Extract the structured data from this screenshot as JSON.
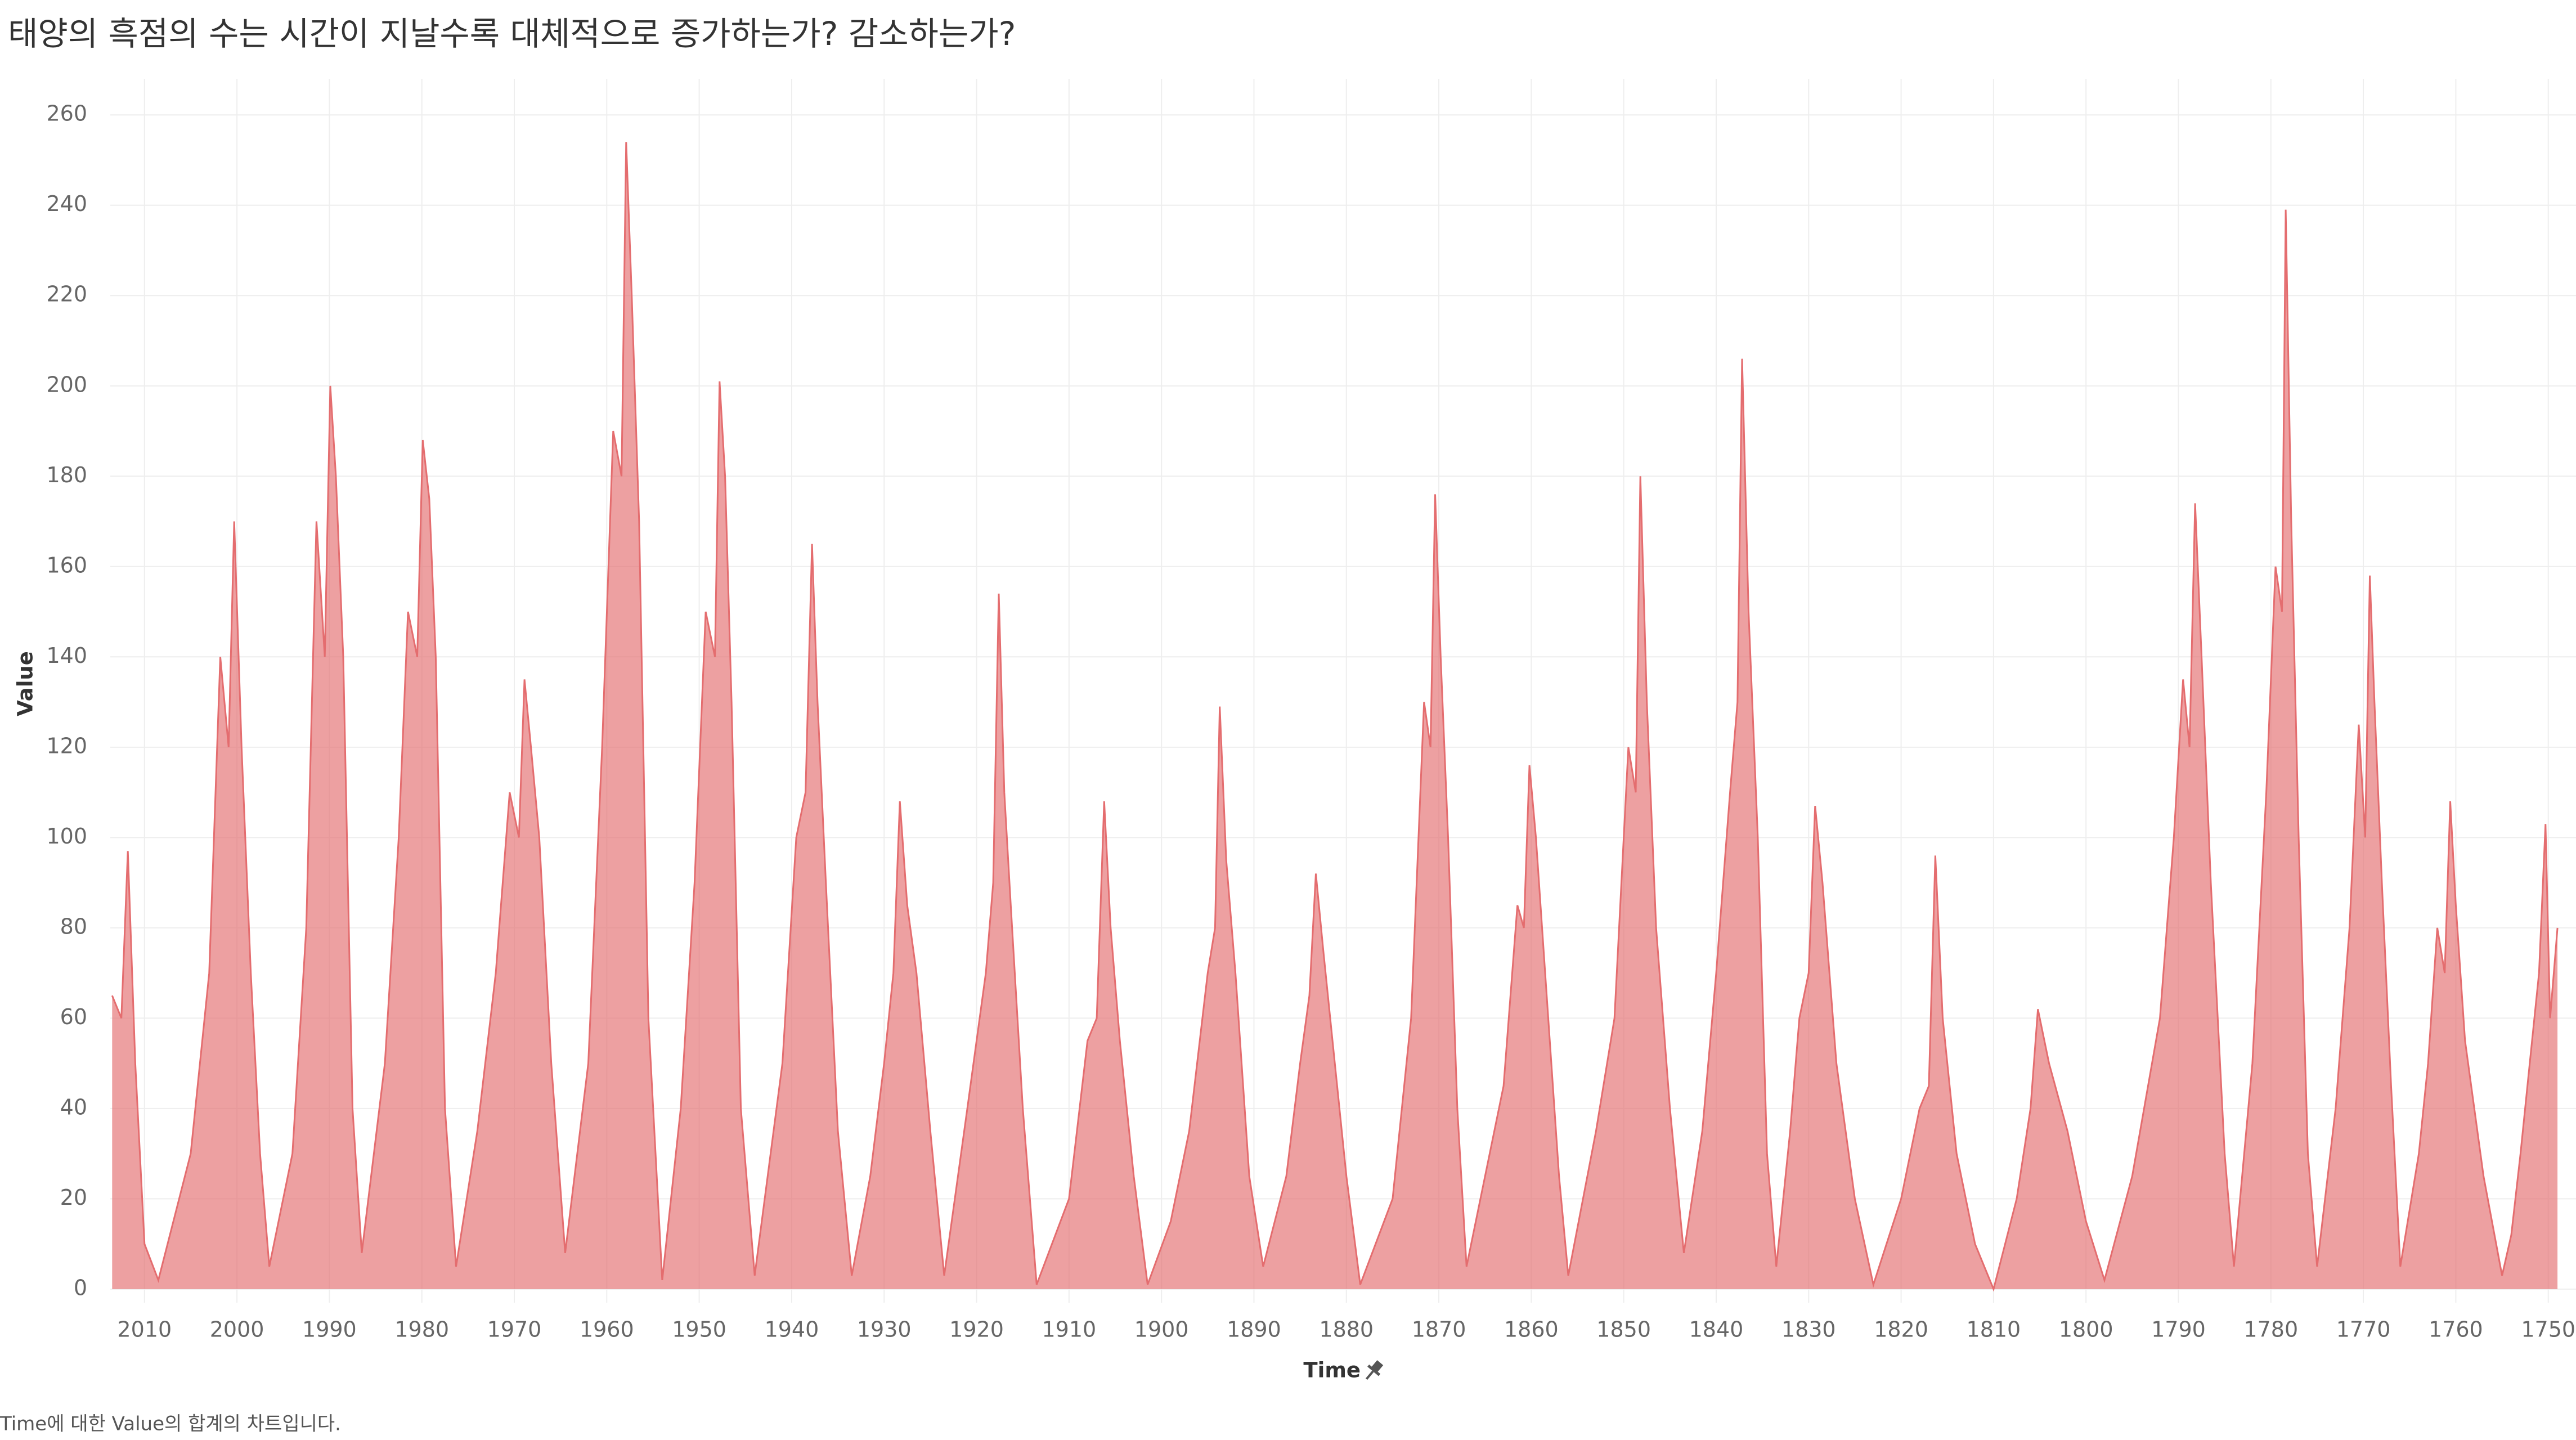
{
  "chart_data": {
    "type": "area",
    "title": "태양의 흑점의 수는 시간이 지날수록 대체적으로 증가하는가? 감소하는가?",
    "x_label": "Time",
    "y_label": "Value",
    "description": "Time에 대한 Value의 합계의 차트입니다.",
    "color": "#e46d6f",
    "grid": true,
    "xlim": [
      2013.7,
      1747
    ],
    "ylim": [
      -3,
      268
    ],
    "xticks": [
      2010,
      2000,
      1990,
      1980,
      1970,
      1960,
      1950,
      1940,
      1930,
      1920,
      1910,
      1900,
      1890,
      1880,
      1870,
      1860,
      1850,
      1840,
      1830,
      1820,
      1810,
      1800,
      1790,
      1780,
      1770,
      1760,
      1750
    ],
    "yticks": [
      0,
      20,
      40,
      60,
      80,
      100,
      120,
      140,
      160,
      180,
      200,
      220,
      240,
      260
    ],
    "x": [
      1749,
      1749.8,
      1750.3,
      1751,
      1752,
      1753,
      1754,
      1755,
      1757,
      1759,
      1760,
      1760.6,
      1761.2,
      1762,
      1763,
      1764,
      1766,
      1767,
      1768,
      1768.8,
      1769.3,
      1769.8,
      1770.5,
      1771.5,
      1773,
      1775,
      1776,
      1777,
      1777.8,
      1778.4,
      1778.8,
      1779.5,
      1780.5,
      1782,
      1784,
      1785,
      1786.5,
      1787.5,
      1788.2,
      1788.8,
      1789.5,
      1790.5,
      1792,
      1795,
      1798,
      1800,
      1802,
      1804,
      1805.2,
      1806,
      1807.5,
      1810,
      1812,
      1814,
      1815.5,
      1816.3,
      1817,
      1818,
      1820,
      1823,
      1825,
      1827,
      1828.5,
      1829.3,
      1830,
      1831,
      1832,
      1833.5,
      1834.5,
      1835.5,
      1836.5,
      1837.2,
      1837.7,
      1838.5,
      1840,
      1841.5,
      1843.5,
      1845,
      1846.5,
      1847.5,
      1848.2,
      1848.7,
      1849.5,
      1851,
      1853,
      1856,
      1857,
      1858.5,
      1859.5,
      1860.2,
      1860.8,
      1861.5,
      1863,
      1865,
      1867,
      1868,
      1869,
      1869.8,
      1870.4,
      1870.9,
      1871.6,
      1873,
      1875,
      1878.5,
      1880,
      1881.5,
      1882.5,
      1883.3,
      1884,
      1885,
      1886.5,
      1889,
      1890.5,
      1892,
      1893,
      1893.7,
      1894.2,
      1895,
      1897,
      1899,
      1901.5,
      1903,
      1904.5,
      1905.5,
      1906.2,
      1907,
      1908,
      1910,
      1913.5,
      1915,
      1916.3,
      1917,
      1917.6,
      1918.2,
      1919,
      1921,
      1923.5,
      1925,
      1926.5,
      1927.5,
      1928.3,
      1929,
      1930,
      1931.5,
      1933.5,
      1935,
      1936.3,
      1937.2,
      1937.8,
      1938.5,
      1939.5,
      1941,
      1944,
      1945.5,
      1946.5,
      1947.2,
      1947.8,
      1948.3,
      1949.3,
      1950.5,
      1952,
      1954,
      1955.5,
      1956.5,
      1957.3,
      1957.9,
      1958.4,
      1959.3,
      1960.5,
      1962,
      1964.5,
      1966,
      1967.3,
      1968.2,
      1968.9,
      1969.5,
      1970.5,
      1972,
      1974,
      1976.3,
      1977.5,
      1978.5,
      1979.2,
      1979.9,
      1980.5,
      1981.5,
      1982.5,
      1984,
      1986.5,
      1987.5,
      1988.5,
      1989.3,
      1989.9,
      1990.5,
      1991.4,
      1992.5,
      1994,
      1996.5,
      1997.5,
      1998.5,
      1999.5,
      2000.3,
      2000.9,
      2001.8,
      2003,
      2005,
      2008.5,
      2010,
      2011,
      2011.8,
      2012.5,
      2013.5
    ],
    "values": [
      80,
      60,
      103,
      70,
      50,
      30,
      12,
      3,
      25,
      55,
      85,
      108,
      70,
      80,
      50,
      30,
      5,
      45,
      90,
      130,
      158,
      100,
      125,
      80,
      40,
      5,
      30,
      100,
      170,
      239,
      150,
      160,
      110,
      50,
      5,
      30,
      90,
      140,
      174,
      120,
      135,
      100,
      60,
      25,
      2,
      15,
      35,
      50,
      62,
      40,
      20,
      0,
      10,
      30,
      60,
      96,
      45,
      40,
      20,
      1,
      20,
      50,
      90,
      107,
      70,
      60,
      35,
      5,
      30,
      100,
      150,
      206,
      130,
      110,
      70,
      35,
      8,
      40,
      80,
      130,
      180,
      110,
      120,
      60,
      35,
      3,
      25,
      70,
      100,
      116,
      80,
      85,
      45,
      25,
      5,
      40,
      100,
      140,
      176,
      120,
      130,
      60,
      20,
      1,
      25,
      55,
      75,
      92,
      65,
      50,
      25,
      5,
      25,
      70,
      95,
      129,
      80,
      70,
      35,
      15,
      1,
      25,
      55,
      80,
      108,
      60,
      55,
      20,
      1,
      40,
      85,
      110,
      154,
      90,
      70,
      40,
      3,
      35,
      70,
      85,
      108,
      70,
      50,
      25,
      3,
      35,
      90,
      130,
      165,
      110,
      100,
      50,
      3,
      40,
      130,
      180,
      201,
      140,
      150,
      90,
      40,
      2,
      60,
      170,
      220,
      254,
      180,
      190,
      120,
      50,
      8,
      50,
      100,
      120,
      135,
      100,
      110,
      70,
      35,
      5,
      40,
      140,
      175,
      188,
      140,
      150,
      100,
      50,
      8,
      40,
      140,
      180,
      200,
      140,
      170,
      80,
      30,
      5,
      30,
      70,
      120,
      170,
      120,
      140,
      70,
      30,
      2,
      10,
      50,
      97,
      60,
      65
    ]
  }
}
